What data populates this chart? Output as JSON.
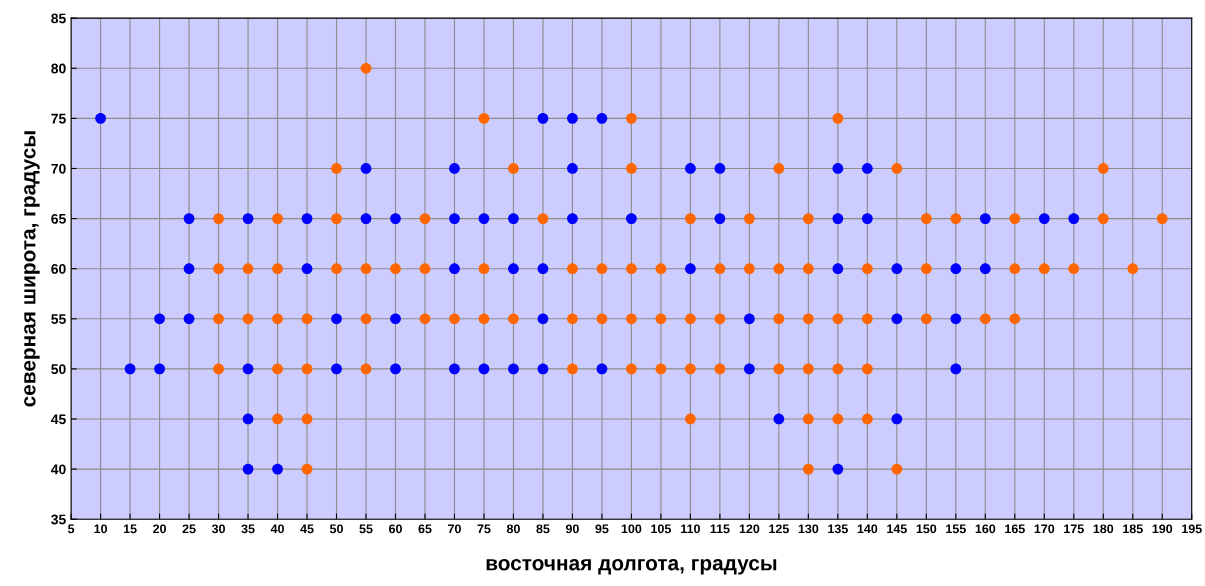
{
  "chart_data": {
    "type": "scatter",
    "xlabel": "восточная долгота, градусы",
    "ylabel": "северная широта, градусы",
    "xlim": [
      5,
      195
    ],
    "xticks": [
      5,
      10,
      15,
      20,
      25,
      30,
      35,
      40,
      45,
      50,
      55,
      60,
      65,
      70,
      75,
      80,
      85,
      90,
      95,
      100,
      105,
      110,
      115,
      120,
      125,
      130,
      135,
      140,
      145,
      150,
      155,
      160,
      165,
      170,
      175,
      180,
      185,
      190,
      195
    ],
    "ylim": [
      35,
      85
    ],
    "yticks": [
      35,
      40,
      45,
      50,
      55,
      60,
      65,
      70,
      75,
      80,
      85
    ],
    "grid": true,
    "marker": "circle",
    "series": [
      {
        "color": "#0000ff",
        "x": [
          10,
          85,
          90,
          95,
          55,
          70,
          90,
          110,
          115,
          135,
          140,
          25,
          35,
          45,
          55,
          60,
          70,
          75,
          80,
          90,
          100,
          115,
          135,
          140,
          160,
          170,
          175,
          25,
          45,
          70,
          80,
          85,
          110,
          135,
          145,
          155,
          160,
          20,
          25,
          50,
          60,
          85,
          120,
          145,
          155,
          15,
          20,
          35,
          50,
          60,
          70,
          75,
          80,
          85,
          95,
          120,
          155,
          35,
          125,
          145,
          35,
          40,
          135
        ],
        "values": [
          75,
          75,
          75,
          75,
          70,
          70,
          70,
          70,
          70,
          70,
          70,
          65,
          65,
          65,
          65,
          65,
          65,
          65,
          65,
          65,
          65,
          65,
          65,
          65,
          65,
          65,
          65,
          60,
          60,
          60,
          60,
          60,
          60,
          60,
          60,
          60,
          60,
          55,
          55,
          55,
          55,
          55,
          55,
          55,
          55,
          50,
          50,
          50,
          50,
          50,
          50,
          50,
          50,
          50,
          50,
          50,
          50,
          45,
          45,
          45,
          40,
          40,
          40
        ]
      },
      {
        "color": "#ff6600",
        "x": [
          55,
          75,
          100,
          135,
          50,
          80,
          100,
          125,
          145,
          180,
          30,
          40,
          50,
          65,
          85,
          110,
          120,
          130,
          150,
          155,
          165,
          180,
          190,
          30,
          35,
          40,
          50,
          55,
          60,
          65,
          75,
          90,
          95,
          100,
          105,
          115,
          120,
          125,
          130,
          140,
          150,
          165,
          170,
          175,
          185,
          30,
          35,
          40,
          45,
          55,
          65,
          70,
          75,
          80,
          90,
          95,
          100,
          105,
          110,
          115,
          125,
          130,
          135,
          140,
          150,
          160,
          165,
          30,
          40,
          45,
          55,
          90,
          100,
          105,
          110,
          115,
          125,
          130,
          135,
          140,
          40,
          45,
          110,
          130,
          135,
          140,
          45,
          130,
          145
        ],
        "values": [
          80,
          75,
          75,
          75,
          70,
          70,
          70,
          70,
          70,
          70,
          65,
          65,
          65,
          65,
          65,
          65,
          65,
          65,
          65,
          65,
          65,
          65,
          65,
          60,
          60,
          60,
          60,
          60,
          60,
          60,
          60,
          60,
          60,
          60,
          60,
          60,
          60,
          60,
          60,
          60,
          60,
          60,
          60,
          60,
          60,
          55,
          55,
          55,
          55,
          55,
          55,
          55,
          55,
          55,
          55,
          55,
          55,
          55,
          55,
          55,
          55,
          55,
          55,
          55,
          55,
          55,
          55,
          50,
          50,
          50,
          50,
          50,
          50,
          50,
          50,
          50,
          50,
          50,
          50,
          50,
          45,
          45,
          45,
          45,
          45,
          45,
          40,
          40,
          40
        ]
      }
    ]
  }
}
